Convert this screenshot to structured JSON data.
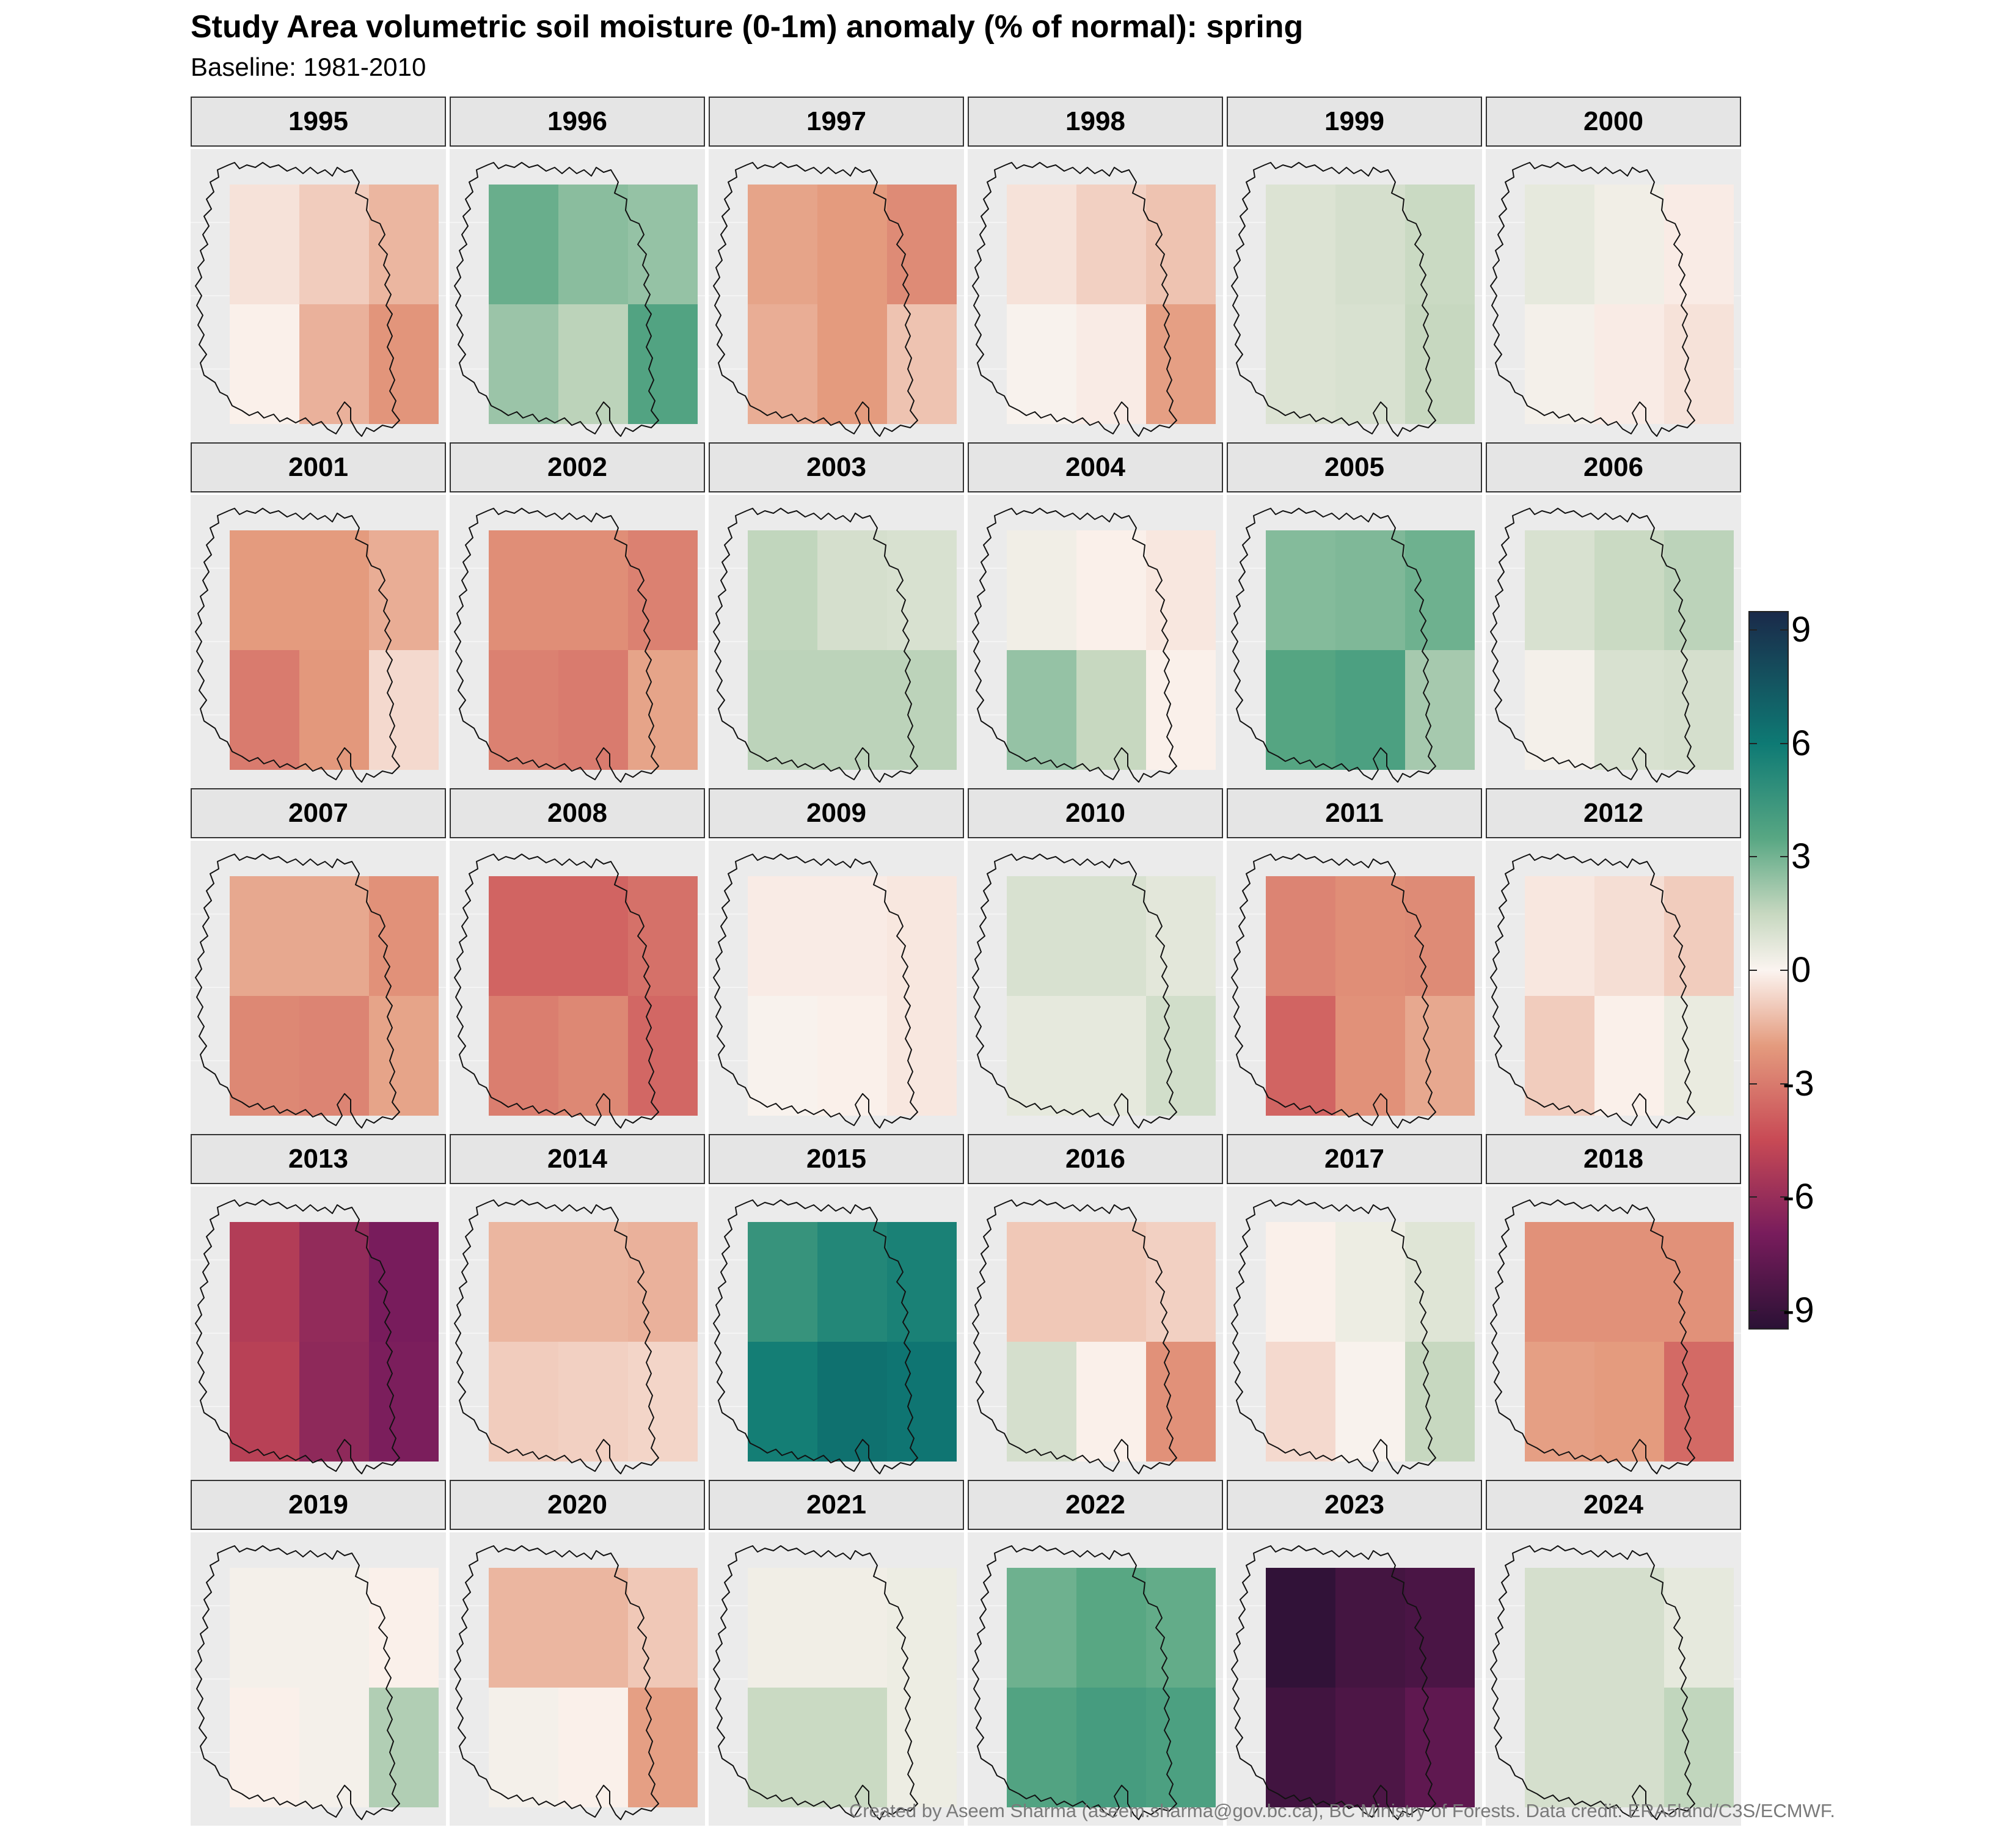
{
  "title": "Study Area volumetric soil moisture (0-1m) anomaly (% of normal): spring",
  "subtitle": "Baseline: 1981-2010",
  "caption": "Created by Aseem Sharma (aseem.sharma@gov.bc.ca), BC Ministry of Forests. Data credit: ERA5land/C3S/ECMWF.",
  "chart_data": {
    "type": "heatmap",
    "facet_by": "year",
    "facet_columns": 6,
    "grid": "2 rows x 3 columns per panel, values listed [top-left, top-middle, top-right, bottom-left, bottom-middle, bottom-right]",
    "colorbar": {
      "ticks": [
        9,
        6,
        3,
        0,
        -3,
        -6,
        -9
      ],
      "tick_labels": [
        "9",
        "6",
        "3",
        "0",
        "-3",
        "-6",
        "-9"
      ],
      "range": [
        -9.5,
        9.5
      ],
      "colors": [
        "#2b1135",
        "#781c5c",
        "#c84a55",
        "#e49b7e",
        "#fbf4f0",
        "#c7d8c0",
        "#58a783",
        "#0e7a74",
        "#1a2a4a"
      ],
      "color_values": [
        -9.5,
        -7,
        -4.5,
        -2,
        0,
        1.5,
        3.5,
        6,
        9.5
      ]
    },
    "panels": [
      {
        "year": "1995",
        "values": [
          -0.4,
          -0.9,
          -1.4,
          -0.1,
          -1.5,
          -2.2
        ]
      },
      {
        "year": "1996",
        "values": [
          3.2,
          2.6,
          2.4,
          2.3,
          1.7,
          3.7
        ]
      },
      {
        "year": "1997",
        "values": [
          -1.8,
          -2.0,
          -2.5,
          -1.6,
          -2.0,
          -1.1
        ]
      },
      {
        "year": "1998",
        "values": [
          -0.4,
          -0.8,
          -1.1,
          0.1,
          -0.2,
          -1.9
        ]
      },
      {
        "year": "1999",
        "values": [
          0.9,
          1.1,
          1.4,
          0.9,
          1.0,
          1.5
        ]
      },
      {
        "year": "2000",
        "values": [
          0.6,
          0.3,
          -0.2,
          0.2,
          -0.2,
          -0.4
        ]
      },
      {
        "year": "2001",
        "values": [
          -2.0,
          -2.0,
          -1.6,
          -3.0,
          -2.1,
          -0.6
        ]
      },
      {
        "year": "2002",
        "values": [
          -2.4,
          -2.4,
          -2.8,
          -2.8,
          -3.0,
          -1.8
        ]
      },
      {
        "year": "2003",
        "values": [
          1.6,
          1.1,
          1.0,
          1.7,
          1.7,
          1.7
        ]
      },
      {
        "year": "2004",
        "values": [
          0.3,
          -0.1,
          -0.3,
          2.4,
          1.5,
          -0.1
        ]
      },
      {
        "year": "2005",
        "values": [
          2.7,
          2.8,
          3.1,
          3.6,
          3.9,
          2.1
        ]
      },
      {
        "year": "2006",
        "values": [
          1.0,
          1.4,
          1.7,
          0.2,
          1.0,
          1.1
        ]
      },
      {
        "year": "2007",
        "values": [
          -1.7,
          -1.7,
          -2.3,
          -2.6,
          -2.7,
          -1.8
        ]
      },
      {
        "year": "2008",
        "values": [
          -3.7,
          -3.7,
          -3.3,
          -2.9,
          -2.6,
          -3.6
        ]
      },
      {
        "year": "2009",
        "values": [
          -0.2,
          -0.2,
          -0.3,
          0.1,
          -0.1,
          -0.3
        ]
      },
      {
        "year": "2010",
        "values": [
          1.0,
          1.0,
          0.7,
          0.6,
          0.6,
          1.2
        ]
      },
      {
        "year": "2011",
        "values": [
          -2.7,
          -2.4,
          -2.5,
          -3.7,
          -2.3,
          -1.7
        ]
      },
      {
        "year": "2012",
        "values": [
          -0.3,
          -0.5,
          -0.9,
          -0.9,
          -0.1,
          0.5
        ]
      },
      {
        "year": "2013",
        "values": [
          -5.2,
          -6.2,
          -7.0,
          -5.0,
          -6.3,
          -6.9
        ]
      },
      {
        "year": "2014",
        "values": [
          -1.4,
          -1.4,
          -1.5,
          -0.9,
          -0.8,
          -0.7
        ]
      },
      {
        "year": "2015",
        "values": [
          4.6,
          5.3,
          5.6,
          5.8,
          6.4,
          6.2
        ]
      },
      {
        "year": "2016",
        "values": [
          -1.0,
          -1.0,
          -0.8,
          1.1,
          -0.1,
          -2.3
        ]
      },
      {
        "year": "2017",
        "values": [
          -0.1,
          0.4,
          0.8,
          -0.6,
          0.1,
          1.5
        ]
      },
      {
        "year": "2018",
        "values": [
          -2.3,
          -2.3,
          -2.3,
          -1.9,
          -2.0,
          -3.5
        ]
      },
      {
        "year": "2019",
        "values": [
          0.2,
          0.2,
          -0.1,
          -0.1,
          0.2,
          1.9
        ]
      },
      {
        "year": "2020",
        "values": [
          -1.4,
          -1.4,
          -1.0,
          0.2,
          -0.1,
          -1.9
        ]
      },
      {
        "year": "2021",
        "values": [
          0.3,
          0.3,
          0.4,
          1.4,
          1.4,
          0.4
        ]
      },
      {
        "year": "2022",
        "values": [
          3.1,
          3.5,
          3.3,
          3.7,
          4.1,
          3.9
        ]
      },
      {
        "year": "2023",
        "values": [
          -9.3,
          -8.7,
          -8.5,
          -8.8,
          -8.4,
          -7.8
        ]
      },
      {
        "year": "2024",
        "values": [
          1.1,
          1.1,
          0.6,
          1.1,
          1.1,
          1.6
        ]
      }
    ]
  }
}
